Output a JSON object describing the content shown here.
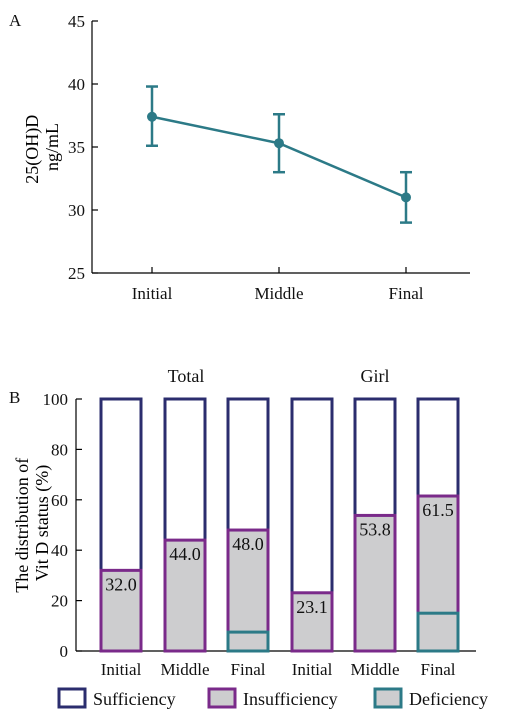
{
  "panel_labels": [
    "A",
    "B"
  ],
  "chart_data": [
    {
      "type": "line",
      "panel": "A",
      "ylabel_lines": [
        "25(OH)D",
        "ng/mL"
      ],
      "categories": [
        "Initial",
        "Middle",
        "Final"
      ],
      "series": [
        {
          "values": [
            37.4,
            35.3,
            31.0
          ],
          "error": [
            [
              35.1,
              39.8
            ],
            [
              33.0,
              37.6
            ],
            [
              29.0,
              33.0
            ]
          ]
        }
      ],
      "ylim": [
        25,
        45
      ],
      "yticks": [
        25,
        30,
        35,
        40,
        45
      ],
      "color": "#2c7a87"
    },
    {
      "type": "bar",
      "panel": "B",
      "stacked": true,
      "ylabel_lines": [
        "The distribution of",
        "Vit D status (%)"
      ],
      "group_labels": [
        "Total",
        "Girl"
      ],
      "categories": [
        "Initial",
        "Middle",
        "Final",
        "Initial",
        "Middle",
        "Final"
      ],
      "series": [
        {
          "name": "Deficiency",
          "values": [
            0,
            0,
            7.5,
            0,
            0,
            15.0
          ]
        },
        {
          "name": "Insufficiency",
          "values": [
            32.0,
            44.0,
            40.5,
            23.1,
            53.8,
            46.5
          ]
        },
        {
          "name": "Sufficiency",
          "values": [
            68.0,
            56.0,
            52.0,
            76.9,
            46.2,
            38.5
          ]
        }
      ],
      "data_labels": [
        "32.0",
        "44.0",
        "48.0",
        "23.1",
        "53.8",
        "61.5"
      ],
      "ylim": [
        0,
        100
      ],
      "yticks": [
        0,
        20,
        40,
        60,
        80,
        100
      ],
      "legend_position": "bottom",
      "colors": {
        "Sufficiency": "#2b2d6e",
        "Insufficiency": "#7a2a8a",
        "Deficiency": "#2c7a87",
        "fill": "#cdcdcf"
      }
    }
  ]
}
